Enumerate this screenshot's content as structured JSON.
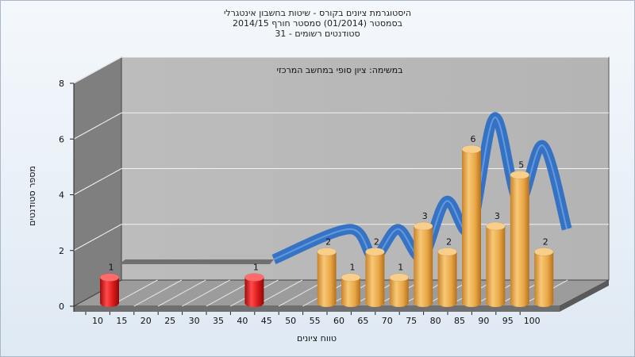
{
  "chart_data": {
    "type": "bar",
    "title_lines": [
      "היסטוגרמת ציונים בקורס - שיטות בחשבון אינטגרלי",
      "בסמסטר  (01/2014)  סמסטר חורף 2014/15",
      "סטודנטים רשומים - 31"
    ],
    "subtitle": "במשימה: ציון סופי במחשב המרכזי",
    "xlabel": "טווח ציונים",
    "ylabel": "מספר סטודנטים",
    "ylim": [
      0,
      8
    ],
    "yticks": [
      "0",
      "2",
      "4",
      "6",
      "8"
    ],
    "categories": [
      "10",
      "15",
      "20",
      "25",
      "30",
      "35",
      "40",
      "45",
      "50",
      "55",
      "60",
      "65",
      "70",
      "75",
      "80",
      "85",
      "90",
      "95",
      "100"
    ],
    "values": [
      1,
      0,
      0,
      0,
      0,
      0,
      1,
      0,
      0,
      2,
      1,
      2,
      1,
      3,
      2,
      6,
      3,
      5,
      2
    ],
    "highlight_failing_until": "45",
    "colors": {
      "fail": "#d81818",
      "pass": "#e9a744",
      "curve": "#2f6fc4"
    },
    "grid": true,
    "legend": "none"
  }
}
